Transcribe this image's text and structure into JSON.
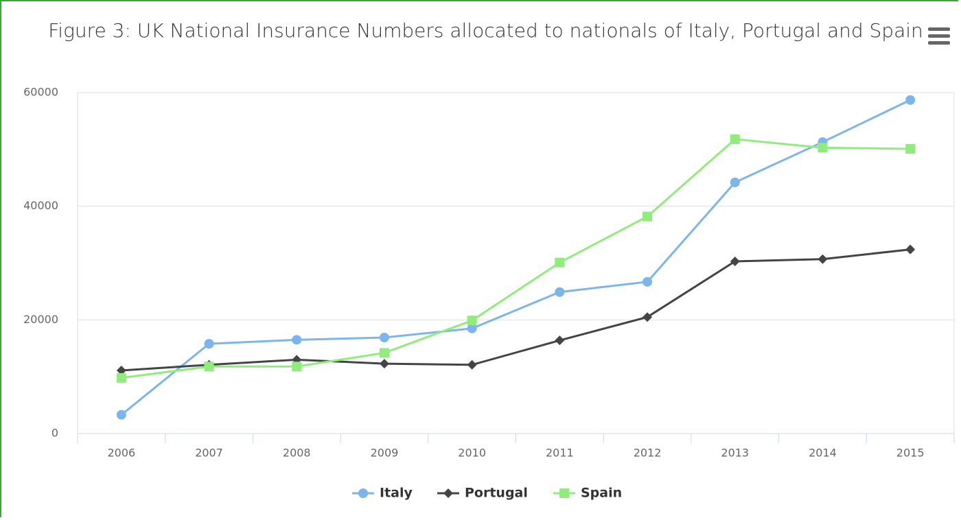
{
  "chart_data": {
    "type": "line",
    "title": "Figure 3: UK National Insurance Numbers allocated to nationals of Italy, Portugal and Spain",
    "categories": [
      "2006",
      "2007",
      "2008",
      "2009",
      "2010",
      "2011",
      "2012",
      "2013",
      "2014",
      "2015"
    ],
    "series": [
      {
        "name": "Italy",
        "color": "#7cb5ec",
        "marker": "circle",
        "values": [
          3300,
          15800,
          16500,
          16900,
          18500,
          24900,
          26700,
          44200,
          51300,
          58700
        ]
      },
      {
        "name": "Portugal",
        "color": "#434348",
        "marker": "diamond",
        "values": [
          11100,
          12100,
          13000,
          12300,
          12100,
          16400,
          20500,
          30300,
          30700,
          32400
        ]
      },
      {
        "name": "Spain",
        "color": "#90ed7d",
        "marker": "square",
        "values": [
          9800,
          11800,
          11800,
          14200,
          19900,
          30100,
          38200,
          51800,
          50300,
          50100
        ]
      }
    ],
    "ylim": [
      0,
      60000
    ],
    "yticks": [
      0,
      20000,
      40000,
      60000
    ],
    "grid": true
  }
}
